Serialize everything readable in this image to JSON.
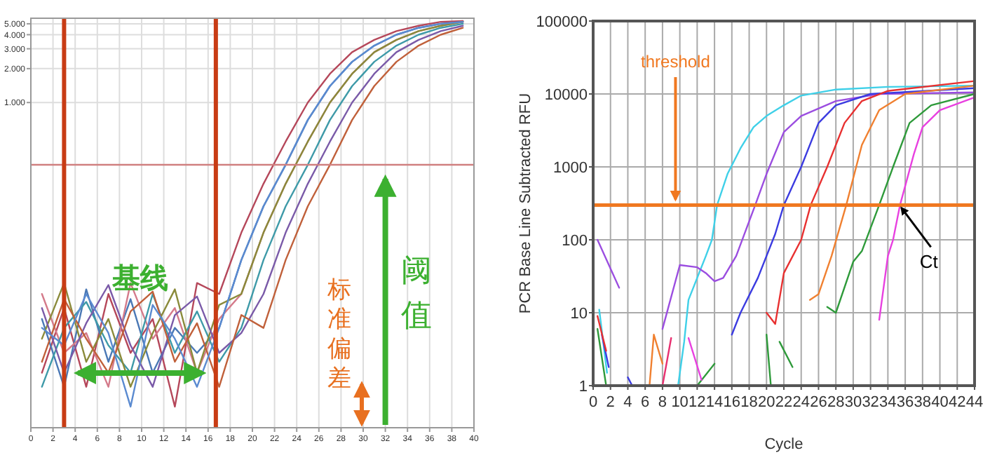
{
  "chart_data": [
    {
      "type": "line",
      "log": "y",
      "grid": true,
      "xlim": [
        0,
        40
      ],
      "ylim": [
        1.3,
        5600
      ],
      "xticks": [
        0,
        2,
        4,
        6,
        8,
        10,
        12,
        14,
        16,
        18,
        20,
        22,
        24,
        26,
        28,
        30,
        32,
        34,
        36,
        38,
        40
      ],
      "yticks": [
        {
          "value": 1000,
          "label": "1.000"
        },
        {
          "value": 2000,
          "label": "2.000"
        },
        {
          "value": 3000,
          "label": "3.000"
        },
        {
          "value": 4000,
          "label": "4.000"
        },
        {
          "value": 5000,
          "label": "5.000"
        }
      ],
      "x": [
        1,
        3,
        5,
        7,
        9,
        11,
        13,
        15,
        17,
        19,
        21,
        23,
        25,
        27,
        29,
        31,
        33,
        35,
        37,
        39
      ],
      "series": [
        {
          "color": "#b5475a",
          "values": [
            4,
            15,
            3,
            20,
            6,
            12,
            2,
            25,
            20,
            70,
            190,
            450,
            1000,
            1800,
            2800,
            3600,
            4300,
            4800,
            5200,
            5300
          ]
        },
        {
          "color": "#4a78b5",
          "values": [
            12,
            3,
            22,
            5,
            18,
            4,
            10,
            6,
            10,
            40,
            120,
            280,
            700,
            1400,
            2300,
            3200,
            4000,
            4600,
            5000,
            5200
          ]
        },
        {
          "color": "#d47a8a",
          "values": [
            20,
            6,
            9,
            3,
            25,
            8,
            15,
            4,
            12,
            20,
            70,
            190,
            450,
            1000,
            1800,
            2800,
            3600,
            4300,
            4800,
            5200
          ]
        },
        {
          "color": "#3e9aa8",
          "values": [
            3,
            10,
            17,
            7,
            4,
            20,
            6,
            14,
            5,
            10,
            40,
            120,
            280,
            700,
            1400,
            2300,
            3200,
            4000,
            4600,
            5000
          ]
        },
        {
          "color": "#8a8a3a",
          "values": [
            8,
            25,
            5,
            12,
            3,
            9,
            22,
            4,
            16,
            20,
            70,
            190,
            450,
            1000,
            1800,
            2800,
            3600,
            4300,
            4800,
            5200
          ]
        },
        {
          "color": "#7a5aa8",
          "values": [
            15,
            4,
            11,
            24,
            7,
            3,
            13,
            19,
            6,
            9,
            20,
            70,
            190,
            450,
            1000,
            1800,
            2800,
            3600,
            4300,
            4800
          ]
        },
        {
          "color": "#c0603a",
          "values": [
            5,
            18,
            8,
            4,
            14,
            21,
            5,
            11,
            3,
            13,
            10,
            40,
            120,
            280,
            700,
            1400,
            2300,
            3200,
            4000,
            4600
          ]
        },
        {
          "color": "#5a8ad0",
          "values": [
            10,
            7,
            20,
            9,
            2,
            16,
            8,
            3,
            10,
            40,
            120,
            280,
            700,
            1400,
            2300,
            3200,
            4000,
            4600,
            5000,
            5200
          ]
        }
      ],
      "ref_lines": [
        {
          "axis": "y",
          "value": 280,
          "color": "#d08080"
        },
        {
          "axis": "x",
          "value": 3,
          "color": "#c83c14"
        },
        {
          "axis": "x",
          "value": 16.7,
          "color": "#c83c14"
        }
      ],
      "annotations": [
        "基线",
        "标准偏差",
        "阈值"
      ]
    },
    {
      "type": "line",
      "log": "y",
      "grid": true,
      "xlim": [
        0,
        44
      ],
      "ylim": [
        1,
        100000
      ],
      "xticks": [
        0,
        2,
        4,
        6,
        8,
        10,
        12,
        14,
        16,
        18,
        20,
        22,
        24,
        26,
        28,
        30,
        32,
        34,
        36,
        38,
        40,
        42,
        44
      ],
      "yticks": [
        1,
        10,
        100,
        1000,
        10000,
        100000
      ],
      "xlabel": "Cycle",
      "ylabel": "PCR Base Line Subtracted RFU",
      "series": [
        {
          "color": "#3fd0e8",
          "x": [
            0.7,
            1.6
          ],
          "values": [
            11,
            1.5
          ]
        },
        {
          "color": "#3fd0e8",
          "x": [
            9.8,
            10.5,
            11,
            12,
            13,
            13.7,
            14.3,
            15.5,
            17,
            18.5,
            20,
            22,
            24,
            28,
            34,
            44
          ],
          "values": [
            1,
            4,
            15,
            30,
            60,
            100,
            300,
            800,
            1800,
            3500,
            5000,
            7000,
            9500,
            11500,
            12500,
            13000
          ]
        },
        {
          "color": "#9b4de0",
          "x": [
            0.5,
            3
          ],
          "values": [
            100,
            22
          ]
        },
        {
          "color": "#9b4de0",
          "x": [
            8,
            10,
            12,
            13,
            14,
            15,
            16.5,
            18.7,
            20,
            22,
            24,
            28,
            33,
            44
          ],
          "values": [
            6,
            45,
            42,
            35,
            27,
            30,
            60,
            300,
            800,
            3000,
            5000,
            8000,
            10000,
            10500
          ]
        },
        {
          "color": "#3b3be0",
          "x": [
            1,
            1.8
          ],
          "values": [
            5,
            1.8
          ]
        },
        {
          "color": "#3b3be0",
          "x": [
            4,
            4.5
          ],
          "values": [
            1.3,
            1
          ]
        },
        {
          "color": "#3b3be0",
          "x": [
            16,
            17,
            19,
            21,
            22,
            24,
            26,
            28,
            32,
            44
          ],
          "values": [
            5,
            10,
            30,
            120,
            300,
            1000,
            4000,
            7000,
            10000,
            12000
          ]
        },
        {
          "color": "#e83030",
          "x": [
            0.5,
            1.5
          ],
          "values": [
            9,
            3
          ]
        },
        {
          "color": "#e83030",
          "x": [
            20,
            21,
            22,
            24,
            25.1,
            27,
            29,
            31,
            34,
            44
          ],
          "values": [
            10,
            7,
            35,
            100,
            300,
            1000,
            4000,
            8000,
            11000,
            15000
          ]
        },
        {
          "color": "#f08030",
          "x": [
            6.5,
            7,
            8
          ],
          "values": [
            1,
            5,
            2
          ]
        },
        {
          "color": "#f08030",
          "x": [
            25,
            26,
            27.5,
            29.2,
            31,
            33,
            36,
            44
          ],
          "values": [
            15,
            18,
            60,
            300,
            2000,
            6000,
            10000,
            13000
          ]
        },
        {
          "color": "#2e9a3a",
          "x": [
            0.5,
            1.5
          ],
          "values": [
            6,
            1
          ]
        },
        {
          "color": "#2e9a3a",
          "x": [
            12,
            14
          ],
          "values": [
            1,
            2
          ]
        },
        {
          "color": "#2e9a3a",
          "x": [
            20,
            20.5
          ],
          "values": [
            5,
            1
          ]
        },
        {
          "color": "#2e9a3a",
          "x": [
            21.5,
            23
          ],
          "values": [
            4,
            1.8
          ]
        },
        {
          "color": "#2e9a3a",
          "x": [
            27,
            28,
            30,
            31,
            33,
            34.6,
            36.5,
            39,
            44
          ],
          "values": [
            12,
            10,
            50,
            70,
            300,
            1000,
            4000,
            7000,
            10000
          ]
        },
        {
          "color": "#e83070",
          "x": [
            8,
            9
          ],
          "values": [
            1,
            4.5
          ]
        },
        {
          "color": "#e840e0",
          "x": [
            11,
            12.5
          ],
          "values": [
            4.5,
            1.2
          ]
        },
        {
          "color": "#e840e0",
          "x": [
            33,
            34,
            34.6,
            35.4,
            37,
            38,
            40,
            44
          ],
          "values": [
            8,
            60,
            100,
            300,
            1500,
            3500,
            6000,
            9000
          ]
        }
      ],
      "ref_lines": [
        {
          "axis": "y",
          "value": 300,
          "color": "#f07820"
        }
      ],
      "annotations": [
        {
          "text": "threshold",
          "x": 9.5,
          "y": 300
        },
        {
          "text": "Ct",
          "x": 35.4,
          "y": 300
        }
      ]
    }
  ]
}
